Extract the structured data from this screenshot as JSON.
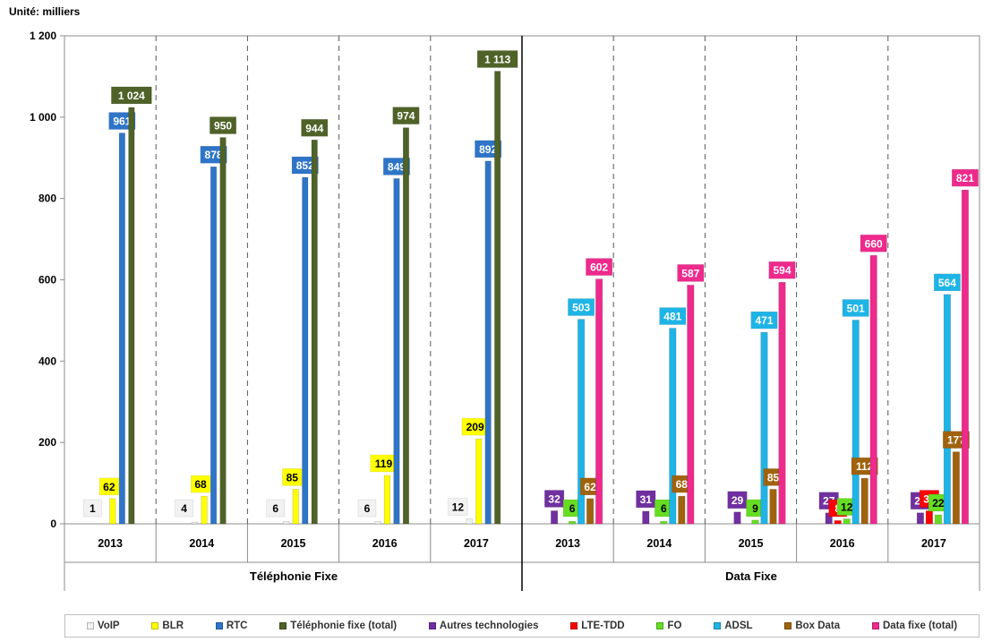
{
  "chart_data": {
    "type": "bar",
    "unit_label": "Unité: milliers",
    "ylim": [
      0,
      1200
    ],
    "yticks": [
      "0",
      "200",
      "400",
      "600",
      "800",
      "1 000",
      "1 200"
    ],
    "groups": [
      {
        "name": "Téléphonie Fixe",
        "categories": [
          "2013",
          "2014",
          "2015",
          "2016",
          "2017"
        ],
        "series": [
          {
            "name": "VoIP",
            "color": "#f2f2f2",
            "values": [
              1,
              4,
              6,
              6,
              12
            ]
          },
          {
            "name": "BLR",
            "color": "#ffff00",
            "values": [
              62,
              68,
              85,
              119,
              209
            ]
          },
          {
            "name": "RTC",
            "color": "#2e75c8",
            "values": [
              961,
              878,
              852,
              849,
              892
            ]
          },
          {
            "name": "Téléphonie fixe (total)",
            "color": "#4f6228",
            "values": [
              1024,
              950,
              944,
              974,
              1113
            ]
          }
        ]
      },
      {
        "name": "Data Fixe",
        "categories": [
          "2013",
          "2014",
          "2015",
          "2016",
          "2017"
        ],
        "series": [
          {
            "name": "Autres technologies",
            "color": "#7030a0",
            "values": [
              32,
              31,
              29,
              27,
              27
            ]
          },
          {
            "name": "LTE-TDD",
            "color": "#ff0000",
            "values": [
              null,
              null,
              null,
              8,
              32
            ]
          },
          {
            "name": "FO",
            "color": "#66dd22",
            "values": [
              6,
              6,
              9,
              12,
              22
            ]
          },
          {
            "name": "ADSL",
            "color": "#1fb4e6",
            "values": [
              503,
              481,
              471,
              501,
              564
            ]
          },
          {
            "name": "Box Data",
            "color": "#a0620c",
            "values": [
              62,
              68,
              85,
              112,
              177
            ]
          },
          {
            "name": "Data fixe (total)",
            "color": "#ee2a8c",
            "values": [
              602,
              587,
              594,
              660,
              821
            ]
          }
        ]
      }
    ],
    "value_labels": [
      [
        [
          "1",
          "62",
          "961",
          "1 024"
        ],
        [
          "4",
          "68",
          "878",
          "950"
        ],
        [
          "6",
          "85",
          "852",
          "944"
        ],
        [
          "6",
          "119",
          "849",
          "974"
        ],
        [
          "12",
          "209",
          "892",
          "1 113"
        ]
      ],
      [
        [
          "32",
          "",
          "6",
          "503",
          "62",
          "602"
        ],
        [
          "31",
          "",
          "6",
          "481",
          "68",
          "587"
        ],
        [
          "29",
          "",
          "9",
          "471",
          "85",
          "594"
        ],
        [
          "27",
          "8",
          "12",
          "501",
          "112",
          "660"
        ],
        [
          "27",
          "32",
          "22",
          "564",
          "177",
          "821"
        ]
      ]
    ],
    "legend": [
      {
        "label": "VoIP",
        "color": "#f2f2f2"
      },
      {
        "label": "BLR",
        "color": "#ffff00"
      },
      {
        "label": "RTC",
        "color": "#2e75c8"
      },
      {
        "label": "Téléphonie fixe (total)",
        "color": "#4f6228"
      },
      {
        "label": "Autres technologies",
        "color": "#7030a0"
      },
      {
        "label": "LTE-TDD",
        "color": "#ff0000"
      },
      {
        "label": "FO",
        "color": "#66dd22"
      },
      {
        "label": "ADSL",
        "color": "#1fb4e6"
      },
      {
        "label": "Box Data",
        "color": "#a0620c"
      },
      {
        "label": "Data fixe (total)",
        "color": "#ee2a8c"
      }
    ],
    "grid": false,
    "legend_position": "bottom"
  }
}
